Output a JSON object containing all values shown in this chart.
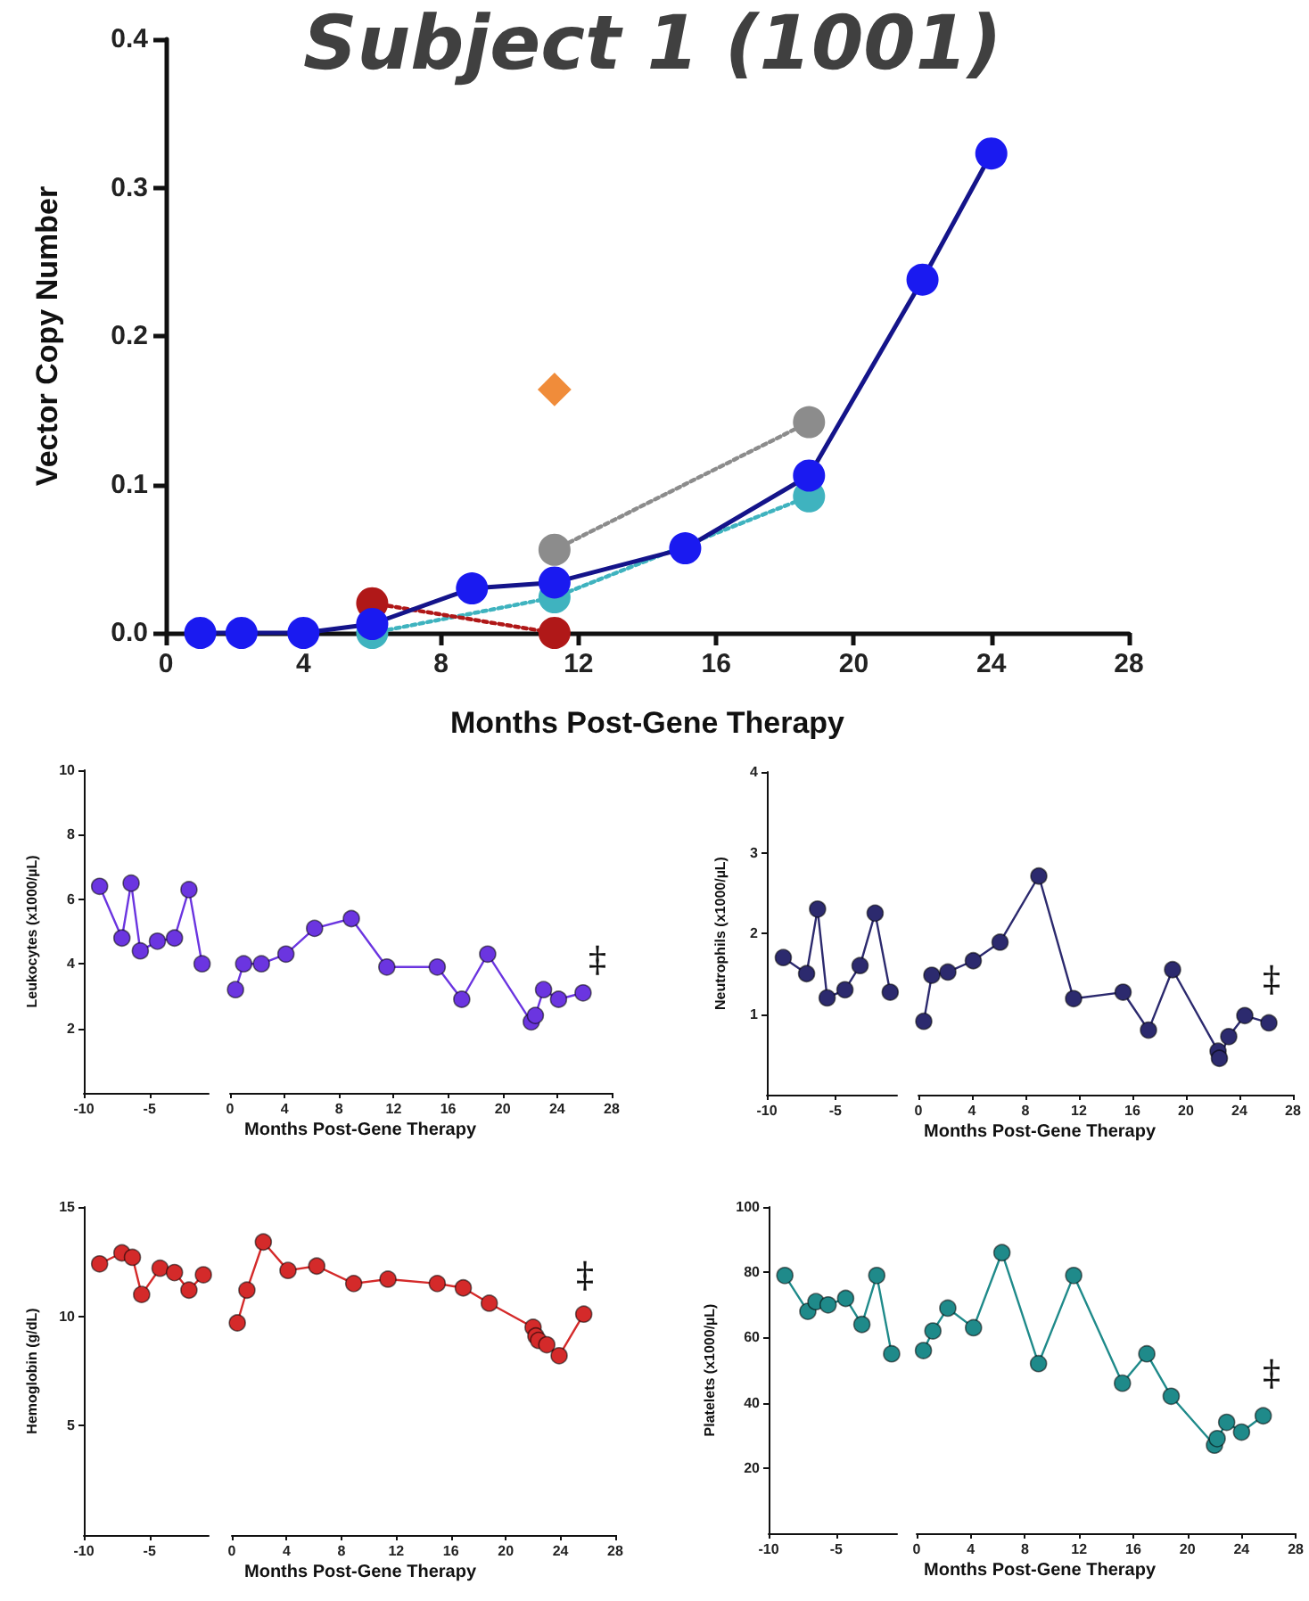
{
  "chart_data": [
    {
      "type": "line",
      "title": "Subject 1 (1001)",
      "xlabel": "Months Post-Gene Therapy",
      "ylabel": "Vector Copy Number",
      "xlim": [
        0,
        28
      ],
      "xticks": [
        0,
        4,
        8,
        12,
        16,
        20,
        24,
        28
      ],
      "ylim": [
        0,
        0.4
      ],
      "yticks": [
        {
          "value": 0,
          "label": "0.0"
        },
        0.1,
        0.2,
        0.3,
        0.4
      ],
      "marker": "circle",
      "series": [
        {
          "color": "#8c8c8c",
          "line_style": "dotted",
          "x": [
            11.3,
            18.7
          ],
          "values": [
            0.056,
            0.142
          ]
        },
        {
          "color": "#3fb3bf",
          "line_style": "dotted",
          "x": [
            6,
            11.3,
            18.7
          ],
          "values": [
            0,
            0.024,
            0.092
          ]
        },
        {
          "color": "#b01818",
          "line_style": "dotted",
          "x": [
            6,
            11.3
          ],
          "values": [
            0.02,
            0
          ]
        },
        {
          "type": "scatter",
          "marker": "diamond",
          "color": "#f08c3a",
          "x": [
            11.3
          ],
          "values": [
            0.164
          ]
        },
        {
          "color": "#1a1af0",
          "line_style": "solid",
          "x": [
            1,
            2.2,
            4,
            6,
            8.9,
            11.3,
            15.1,
            18.7,
            22,
            24
          ],
          "values": [
            0,
            0,
            0,
            0.006,
            0.03,
            0.034,
            0.057,
            0.106,
            0.238,
            0.323
          ]
        }
      ]
    },
    {
      "type": "line",
      "ylabel": "Leukocytes (x1000/µL)",
      "color": "#6b35e0",
      "marker": "circle",
      "xlim": [
        -10,
        -0.5
      ],
      "xticks": [
        -10,
        -5
      ],
      "ylim": [
        0,
        10
      ],
      "yticks": [
        2,
        4,
        6,
        8,
        10
      ],
      "x": [
        -8.8,
        -7.1,
        -6.4,
        -5.7,
        -4.4,
        -3.1,
        -2,
        -1
      ],
      "values": [
        6.4,
        4.8,
        6.5,
        4.4,
        4.7,
        4.8,
        6.3,
        4.0
      ]
    },
    {
      "type": "line",
      "xlabel": "Months Post-Gene Therapy",
      "color": "#6b35e0",
      "marker": "circle",
      "tick_labels": "x",
      "xlim": [
        0,
        28
      ],
      "xticks": [
        0,
        4,
        8,
        12,
        16,
        20,
        24,
        28
      ],
      "ylim": [
        0,
        10
      ],
      "yticks": [
        2,
        4,
        6,
        8,
        10
      ],
      "x": [
        0.4,
        1,
        2.3,
        4.1,
        6.2,
        8.9,
        11.5,
        15.2,
        17,
        18.9,
        22.1,
        22.4,
        23,
        24.1,
        25.9
      ],
      "values": [
        3.2,
        4.0,
        4.0,
        4.3,
        5.1,
        5.4,
        3.9,
        3.9,
        2.9,
        4.3,
        2.2,
        2.4,
        3.2,
        2.9,
        3.1
      ],
      "annotations": [
        "‡"
      ]
    },
    {
      "type": "line",
      "ylabel": "Neutrophils (x1000/µL)",
      "color": "#2c2a6e",
      "marker": "circle",
      "xlim": [
        -10,
        -0.5
      ],
      "xticks": [
        -10,
        -5
      ],
      "ylim": [
        0,
        4
      ],
      "yticks": [
        1,
        2,
        3,
        4
      ],
      "x": [
        -8.8,
        -7.1,
        -6.3,
        -5.6,
        -4.3,
        -3.2,
        -2.1,
        -1
      ],
      "values": [
        1.7,
        1.5,
        2.3,
        1.2,
        1.3,
        1.6,
        2.25,
        1.27
      ]
    },
    {
      "type": "line",
      "xlabel": "Months Post-Gene Therapy",
      "color": "#2c2a6e",
      "marker": "circle",
      "tick_labels": "x",
      "xlim": [
        0,
        28
      ],
      "xticks": [
        0,
        4,
        8,
        12,
        16,
        20,
        24,
        28
      ],
      "ylim": [
        0,
        4
      ],
      "yticks": [
        1,
        2,
        3,
        4
      ],
      "x": [
        0.4,
        1,
        2.2,
        4.1,
        6.1,
        9,
        11.6,
        15.3,
        17.2,
        19,
        22.4,
        22.5,
        23.2,
        24.4,
        26.2
      ],
      "values": [
        0.91,
        1.48,
        1.52,
        1.66,
        1.89,
        2.71,
        1.19,
        1.27,
        0.8,
        1.55,
        0.54,
        0.45,
        0.72,
        0.98,
        0.89
      ],
      "annotations": [
        "‡"
      ]
    },
    {
      "type": "line",
      "ylabel": "Hemoglobin (g/dL)",
      "color": "#d42a2a",
      "marker": "circle",
      "xlim": [
        -10,
        -0.5
      ],
      "xticks": [
        -10,
        -5
      ],
      "ylim": [
        0,
        15
      ],
      "yticks": [
        5,
        10,
        15
      ],
      "x": [
        -8.8,
        -7.1,
        -6.3,
        -5.6,
        -4.2,
        -3.1,
        -2,
        -0.9
      ],
      "values": [
        12.4,
        12.9,
        12.7,
        11.0,
        12.2,
        12.0,
        11.2,
        11.9
      ]
    },
    {
      "type": "line",
      "xlabel": "Months Post-Gene Therapy",
      "color": "#d42a2a",
      "marker": "circle",
      "tick_labels": "x",
      "xlim": [
        0,
        28
      ],
      "xticks": [
        0,
        4,
        8,
        12,
        16,
        20,
        24,
        28
      ],
      "ylim": [
        0,
        15
      ],
      "yticks": [
        5,
        10,
        15
      ],
      "x": [
        0.4,
        1.1,
        2.3,
        4.1,
        6.2,
        8.9,
        11.4,
        15,
        16.9,
        18.8,
        22,
        22.2,
        22.4,
        23,
        23.9,
        25.7
      ],
      "values": [
        9.7,
        11.2,
        13.4,
        12.1,
        12.3,
        11.5,
        11.7,
        11.5,
        11.3,
        10.6,
        9.5,
        9.1,
        8.9,
        8.7,
        8.2,
        10.1
      ],
      "annotations": [
        "‡"
      ]
    },
    {
      "type": "line",
      "ylabel": "Platelets (x1000/µL)",
      "color": "#1f8a8a",
      "marker": "circle",
      "xlim": [
        -10,
        -0.5
      ],
      "xticks": [
        -10,
        -5
      ],
      "ylim": [
        0,
        100
      ],
      "yticks": [
        20,
        40,
        60,
        80,
        100
      ],
      "x": [
        -8.8,
        -7.1,
        -6.5,
        -5.6,
        -4.3,
        -3.1,
        -2,
        -0.9
      ],
      "values": [
        79,
        68,
        71,
        70,
        72,
        64,
        79,
        55
      ]
    },
    {
      "type": "line",
      "xlabel": "Months Post-Gene Therapy",
      "color": "#1f8a8a",
      "marker": "circle",
      "tick_labels": "x",
      "xlim": [
        0,
        28
      ],
      "xticks": [
        0,
        4,
        8,
        12,
        16,
        20,
        24,
        28
      ],
      "ylim": [
        0,
        100
      ],
      "yticks": [
        20,
        40,
        60,
        80,
        100
      ],
      "x": [
        0.5,
        1.2,
        2.3,
        4.2,
        6.3,
        9,
        11.6,
        15.2,
        17,
        18.8,
        22,
        22.2,
        22.9,
        24,
        25.6
      ],
      "values": [
        56,
        62,
        69,
        63,
        86,
        52,
        79,
        46,
        55,
        42,
        27,
        29,
        34,
        31,
        36
      ],
      "annotations": [
        "‡"
      ]
    }
  ]
}
